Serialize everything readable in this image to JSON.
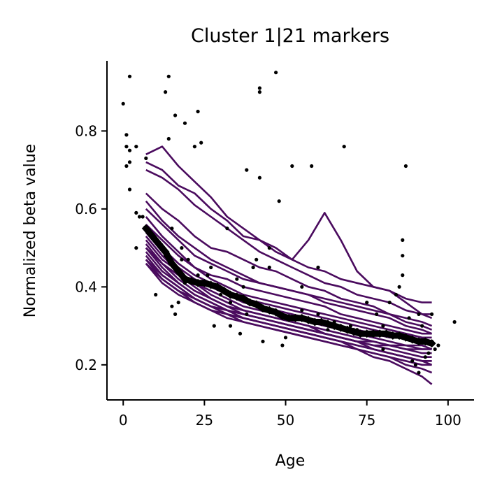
{
  "chart_data": {
    "type": "line",
    "title": "Cluster 1|21 markers",
    "xlabel": "Age",
    "ylabel": "Normalized beta value",
    "xlim": [
      -5,
      108
    ],
    "ylim": [
      0.11,
      0.98
    ],
    "xticks": [
      0,
      25,
      50,
      75,
      100
    ],
    "yticks": [
      0.2,
      0.4,
      0.6,
      0.8
    ],
    "xtick_labels": [
      "0",
      "25",
      "50",
      "75",
      "100"
    ],
    "ytick_labels": [
      "0.2",
      "0.4",
      "0.6",
      "0.8"
    ],
    "grid": false,
    "legend": "none",
    "colors": {
      "series": "#4a0b5e",
      "mean": "#000000",
      "points": "#000000"
    },
    "series": [
      {
        "x": [
          7,
          12,
          17,
          22,
          27,
          32,
          37,
          42,
          47,
          52,
          57,
          62,
          67,
          72,
          77,
          82,
          87,
          92,
          95
        ],
        "values": [
          0.74,
          0.76,
          0.71,
          0.67,
          0.63,
          0.58,
          0.55,
          0.52,
          0.49,
          0.47,
          0.45,
          0.44,
          0.42,
          0.41,
          0.4,
          0.39,
          0.37,
          0.36,
          0.36
        ]
      },
      {
        "x": [
          7,
          12,
          17,
          22,
          27,
          32,
          37,
          42,
          47,
          52,
          57,
          62,
          67,
          72,
          77,
          82,
          87,
          92,
          95
        ],
        "values": [
          0.72,
          0.7,
          0.66,
          0.64,
          0.6,
          0.57,
          0.53,
          0.52,
          0.5,
          0.47,
          0.52,
          0.59,
          0.52,
          0.44,
          0.4,
          0.39,
          0.36,
          0.33,
          0.32
        ]
      },
      {
        "x": [
          7,
          12,
          17,
          22,
          27,
          32,
          37,
          42,
          47,
          52,
          57,
          62,
          67,
          72,
          77,
          82,
          87,
          92,
          95
        ],
        "values": [
          0.7,
          0.68,
          0.65,
          0.61,
          0.58,
          0.55,
          0.52,
          0.49,
          0.47,
          0.45,
          0.43,
          0.41,
          0.4,
          0.38,
          0.37,
          0.36,
          0.34,
          0.33,
          0.33
        ]
      },
      {
        "x": [
          7,
          12,
          17,
          22,
          27,
          32,
          37,
          42,
          47,
          52,
          57,
          62,
          67,
          72,
          77,
          82,
          87,
          92,
          95
        ],
        "values": [
          0.64,
          0.6,
          0.57,
          0.53,
          0.5,
          0.49,
          0.47,
          0.45,
          0.44,
          0.42,
          0.4,
          0.39,
          0.37,
          0.36,
          0.35,
          0.33,
          0.31,
          0.3,
          0.29
        ]
      },
      {
        "x": [
          7,
          12,
          17,
          22,
          27,
          32,
          37,
          42,
          47,
          52,
          57,
          62,
          67,
          72,
          77,
          82,
          87,
          92,
          95
        ],
        "values": [
          0.62,
          0.57,
          0.53,
          0.5,
          0.47,
          0.45,
          0.43,
          0.41,
          0.4,
          0.39,
          0.38,
          0.36,
          0.35,
          0.34,
          0.33,
          0.32,
          0.3,
          0.29,
          0.28
        ]
      },
      {
        "x": [
          7,
          12,
          17,
          22,
          27,
          32,
          37,
          42,
          47,
          52,
          57,
          62,
          67,
          72,
          77,
          82,
          87,
          92,
          95
        ],
        "values": [
          0.6,
          0.56,
          0.52,
          0.48,
          0.46,
          0.44,
          0.42,
          0.41,
          0.4,
          0.39,
          0.38,
          0.37,
          0.36,
          0.35,
          0.34,
          0.33,
          0.32,
          0.31,
          0.3
        ]
      },
      {
        "x": [
          7,
          12,
          17,
          22,
          27,
          32,
          37,
          42,
          47,
          52,
          57,
          62,
          67,
          72,
          77,
          82,
          87,
          92,
          95
        ],
        "values": [
          0.58,
          0.53,
          0.49,
          0.45,
          0.43,
          0.42,
          0.4,
          0.39,
          0.38,
          0.37,
          0.36,
          0.35,
          0.33,
          0.32,
          0.31,
          0.3,
          0.29,
          0.28,
          0.28
        ]
      },
      {
        "x": [
          7,
          12,
          17,
          22,
          27,
          32,
          37,
          42,
          47,
          52,
          57,
          62,
          67,
          72,
          77,
          82,
          87,
          92,
          95
        ],
        "values": [
          0.56,
          0.52,
          0.48,
          0.45,
          0.42,
          0.4,
          0.38,
          0.37,
          0.36,
          0.35,
          0.34,
          0.33,
          0.32,
          0.31,
          0.3,
          0.29,
          0.28,
          0.27,
          0.27
        ]
      },
      {
        "x": [
          7,
          12,
          17,
          22,
          27,
          32,
          37,
          42,
          47,
          52,
          57,
          62,
          67,
          72,
          77,
          82,
          87,
          92,
          95
        ],
        "values": [
          0.55,
          0.5,
          0.46,
          0.43,
          0.41,
          0.39,
          0.37,
          0.36,
          0.35,
          0.34,
          0.33,
          0.32,
          0.31,
          0.3,
          0.29,
          0.28,
          0.27,
          0.26,
          0.26
        ]
      },
      {
        "x": [
          7,
          12,
          17,
          22,
          27,
          32,
          37,
          42,
          47,
          52,
          57,
          62,
          67,
          72,
          77,
          82,
          87,
          92,
          95
        ],
        "values": [
          0.54,
          0.49,
          0.45,
          0.42,
          0.4,
          0.38,
          0.36,
          0.35,
          0.34,
          0.33,
          0.32,
          0.31,
          0.3,
          0.29,
          0.28,
          0.27,
          0.27,
          0.26,
          0.25
        ]
      },
      {
        "x": [
          7,
          12,
          17,
          22,
          27,
          32,
          37,
          42,
          47,
          52,
          57,
          62,
          67,
          72,
          77,
          82,
          87,
          92,
          95
        ],
        "values": [
          0.53,
          0.48,
          0.44,
          0.41,
          0.39,
          0.37,
          0.35,
          0.34,
          0.33,
          0.32,
          0.31,
          0.3,
          0.29,
          0.28,
          0.27,
          0.26,
          0.25,
          0.25,
          0.24
        ]
      },
      {
        "x": [
          7,
          12,
          17,
          22,
          27,
          32,
          37,
          42,
          47,
          52,
          57,
          62,
          67,
          72,
          77,
          82,
          87,
          92,
          95
        ],
        "values": [
          0.52,
          0.47,
          0.44,
          0.41,
          0.38,
          0.36,
          0.34,
          0.33,
          0.32,
          0.31,
          0.3,
          0.29,
          0.28,
          0.27,
          0.26,
          0.25,
          0.24,
          0.23,
          0.23
        ]
      },
      {
        "x": [
          7,
          12,
          17,
          22,
          27,
          32,
          37,
          42,
          47,
          52,
          57,
          62,
          67,
          72,
          77,
          82,
          87,
          92,
          95
        ],
        "values": [
          0.51,
          0.46,
          0.43,
          0.4,
          0.37,
          0.35,
          0.33,
          0.32,
          0.31,
          0.3,
          0.29,
          0.28,
          0.27,
          0.26,
          0.25,
          0.24,
          0.23,
          0.22,
          0.22
        ]
      },
      {
        "x": [
          7,
          12,
          17,
          22,
          27,
          32,
          37,
          42,
          47,
          52,
          57,
          62,
          67,
          72,
          77,
          82,
          87,
          92,
          95
        ],
        "values": [
          0.5,
          0.46,
          0.42,
          0.39,
          0.37,
          0.35,
          0.34,
          0.33,
          0.32,
          0.31,
          0.3,
          0.28,
          0.27,
          0.26,
          0.24,
          0.23,
          0.22,
          0.21,
          0.2
        ]
      },
      {
        "x": [
          7,
          12,
          17,
          22,
          27,
          32,
          37,
          42,
          47,
          52,
          57,
          62,
          67,
          72,
          77,
          82,
          87,
          92,
          95
        ],
        "values": [
          0.5,
          0.45,
          0.41,
          0.38,
          0.36,
          0.34,
          0.33,
          0.32,
          0.31,
          0.3,
          0.29,
          0.28,
          0.27,
          0.26,
          0.25,
          0.25,
          0.24,
          0.24,
          0.24
        ]
      },
      {
        "x": [
          7,
          12,
          17,
          22,
          27,
          32,
          37,
          42,
          47,
          52,
          57,
          62,
          67,
          72,
          77,
          82,
          87,
          92,
          95
        ],
        "values": [
          0.49,
          0.44,
          0.41,
          0.38,
          0.36,
          0.34,
          0.32,
          0.31,
          0.3,
          0.29,
          0.28,
          0.27,
          0.26,
          0.25,
          0.24,
          0.23,
          0.22,
          0.21,
          0.21
        ]
      },
      {
        "x": [
          7,
          12,
          17,
          22,
          27,
          32,
          37,
          42,
          47,
          52,
          57,
          62,
          67,
          72,
          77,
          82,
          87,
          92,
          95
        ],
        "values": [
          0.48,
          0.43,
          0.4,
          0.37,
          0.35,
          0.33,
          0.32,
          0.31,
          0.3,
          0.29,
          0.28,
          0.27,
          0.26,
          0.24,
          0.23,
          0.22,
          0.21,
          0.2,
          0.2
        ]
      },
      {
        "x": [
          7,
          12,
          17,
          22,
          27,
          32,
          37,
          42,
          47,
          52,
          57,
          62,
          67,
          72,
          77,
          82,
          87,
          92,
          95
        ],
        "values": [
          0.47,
          0.43,
          0.4,
          0.37,
          0.35,
          0.34,
          0.33,
          0.32,
          0.31,
          0.3,
          0.29,
          0.28,
          0.27,
          0.26,
          0.26,
          0.25,
          0.25,
          0.24,
          0.24
        ]
      },
      {
        "x": [
          7,
          12,
          17,
          22,
          27,
          32,
          37,
          42,
          47,
          52,
          57,
          62,
          67,
          72,
          77,
          82,
          87,
          92,
          95
        ],
        "values": [
          0.47,
          0.42,
          0.39,
          0.37,
          0.35,
          0.33,
          0.31,
          0.3,
          0.29,
          0.28,
          0.27,
          0.26,
          0.25,
          0.24,
          0.23,
          0.22,
          0.2,
          0.19,
          0.18
        ]
      },
      {
        "x": [
          7,
          12,
          17,
          22,
          27,
          32,
          37,
          42,
          47,
          52,
          57,
          62,
          67,
          72,
          77,
          82,
          87,
          92,
          95
        ],
        "values": [
          0.46,
          0.42,
          0.39,
          0.36,
          0.34,
          0.32,
          0.31,
          0.3,
          0.29,
          0.28,
          0.27,
          0.26,
          0.25,
          0.24,
          0.22,
          0.21,
          0.19,
          0.17,
          0.15
        ]
      },
      {
        "x": [
          7,
          12,
          17,
          22,
          27,
          32,
          37,
          42,
          47,
          52,
          57,
          62,
          67,
          72,
          77,
          82,
          87,
          92,
          95
        ],
        "values": [
          0.46,
          0.41,
          0.38,
          0.36,
          0.34,
          0.33,
          0.32,
          0.31,
          0.3,
          0.29,
          0.28,
          0.27,
          0.26,
          0.25,
          0.24,
          0.23,
          0.22,
          0.21,
          0.21
        ]
      }
    ],
    "mean": {
      "x": [
        7,
        9,
        11,
        13,
        15,
        17,
        19,
        21,
        23,
        25,
        27,
        29,
        31,
        33,
        35,
        37,
        39,
        41,
        43,
        45,
        47,
        49,
        51,
        53,
        55,
        57,
        59,
        61,
        63,
        65,
        67,
        69,
        71,
        73,
        75,
        77,
        79,
        81,
        83,
        85,
        87,
        89,
        91,
        93,
        95
      ],
      "values": [
        0.55,
        0.53,
        0.51,
        0.49,
        0.46,
        0.44,
        0.42,
        0.415,
        0.41,
        0.41,
        0.405,
        0.4,
        0.39,
        0.38,
        0.375,
        0.37,
        0.36,
        0.355,
        0.345,
        0.34,
        0.335,
        0.325,
        0.32,
        0.32,
        0.32,
        0.315,
        0.31,
        0.31,
        0.305,
        0.3,
        0.295,
        0.29,
        0.285,
        0.28,
        0.28,
        0.28,
        0.28,
        0.28,
        0.275,
        0.275,
        0.27,
        0.265,
        0.26,
        0.26,
        0.255
      ]
    },
    "points": [
      [
        0,
        0.87
      ],
      [
        1,
        0.79
      ],
      [
        1,
        0.76
      ],
      [
        2,
        0.75
      ],
      [
        2,
        0.72
      ],
      [
        1,
        0.71
      ],
      [
        2,
        0.94
      ],
      [
        2,
        0.65
      ],
      [
        4,
        0.76
      ],
      [
        4,
        0.59
      ],
      [
        4,
        0.5
      ],
      [
        5,
        0.58
      ],
      [
        6,
        0.58
      ],
      [
        7,
        0.73
      ],
      [
        13,
        0.9
      ],
      [
        14,
        0.94
      ],
      [
        14,
        0.78
      ],
      [
        16,
        0.84
      ],
      [
        19,
        0.82
      ],
      [
        22,
        0.76
      ],
      [
        23,
        0.85
      ],
      [
        24,
        0.77
      ],
      [
        13,
        0.48
      ],
      [
        15,
        0.35
      ],
      [
        16,
        0.33
      ],
      [
        17,
        0.36
      ],
      [
        18,
        0.5
      ],
      [
        15,
        0.55
      ],
      [
        10,
        0.38
      ],
      [
        18,
        0.47
      ],
      [
        20,
        0.47
      ],
      [
        26,
        0.43
      ],
      [
        28,
        0.3
      ],
      [
        30,
        0.38
      ],
      [
        32,
        0.55
      ],
      [
        33,
        0.3
      ],
      [
        35,
        0.42
      ],
      [
        36,
        0.28
      ],
      [
        37,
        0.4
      ],
      [
        38,
        0.7
      ],
      [
        40,
        0.45
      ],
      [
        41,
        0.47
      ],
      [
        42,
        0.68
      ],
      [
        42,
        0.91
      ],
      [
        42,
        0.9
      ],
      [
        43,
        0.26
      ],
      [
        45,
        0.5
      ],
      [
        47,
        0.95
      ],
      [
        48,
        0.62
      ],
      [
        49,
        0.25
      ],
      [
        50,
        0.27
      ],
      [
        52,
        0.71
      ],
      [
        55,
        0.34
      ],
      [
        58,
        0.71
      ],
      [
        60,
        0.33
      ],
      [
        63,
        0.29
      ],
      [
        65,
        0.31
      ],
      [
        68,
        0.76
      ],
      [
        70,
        0.3
      ],
      [
        72,
        0.29
      ],
      [
        75,
        0.36
      ],
      [
        78,
        0.33
      ],
      [
        80,
        0.3
      ],
      [
        82,
        0.36
      ],
      [
        84,
        0.38
      ],
      [
        85,
        0.4
      ],
      [
        86,
        0.43
      ],
      [
        86,
        0.52
      ],
      [
        87,
        0.71
      ],
      [
        86,
        0.48
      ],
      [
        88,
        0.27
      ],
      [
        89,
        0.21
      ],
      [
        90,
        0.26
      ],
      [
        90,
        0.2
      ],
      [
        91,
        0.18
      ],
      [
        92,
        0.3
      ],
      [
        93,
        0.22
      ],
      [
        94,
        0.23
      ],
      [
        95,
        0.33
      ],
      [
        95,
        0.26
      ],
      [
        96,
        0.24
      ],
      [
        97,
        0.25
      ],
      [
        102,
        0.31
      ],
      [
        80,
        0.24
      ],
      [
        85,
        0.27
      ],
      [
        88,
        0.32
      ],
      [
        91,
        0.33
      ],
      [
        60,
        0.45
      ],
      [
        55,
        0.4
      ],
      [
        45,
        0.45
      ],
      [
        38,
        0.33
      ],
      [
        33,
        0.36
      ],
      [
        27,
        0.45
      ],
      [
        23,
        0.43
      ],
      [
        19,
        0.41
      ]
    ]
  }
}
